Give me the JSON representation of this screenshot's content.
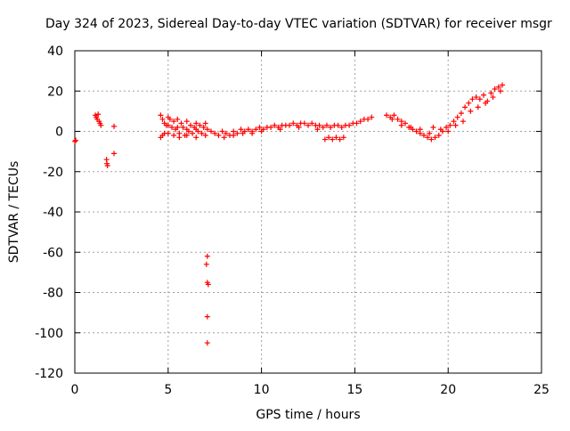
{
  "chart_data": {
    "type": "scatter",
    "title": "Day 324 of 2023, Sidereal Day-to-day VTEC variation (SDTVAR) for receiver msgr",
    "xlabel": "GPS time / hours",
    "ylabel": "SDTVAR / TECUs",
    "xlim": [
      0,
      25
    ],
    "ylim": [
      -120,
      40
    ],
    "xticks": [
      0,
      5,
      10,
      15,
      20,
      25
    ],
    "yticks": [
      -120,
      -100,
      -80,
      -60,
      -40,
      -20,
      0,
      20,
      40
    ],
    "xtick_labels": [
      "0",
      "5",
      "10",
      "15",
      "20",
      "25"
    ],
    "ytick_labels": [
      "-120",
      "-100",
      "-80",
      "-60",
      "-40",
      "-20",
      "0",
      "20",
      "40"
    ],
    "grid": true,
    "marker": "+",
    "series_color": "#ff0000",
    "series": [
      {
        "name": "msgr",
        "points": [
          [
            0.0,
            -5
          ],
          [
            0.05,
            -4.5
          ],
          [
            1.1,
            8
          ],
          [
            1.15,
            7
          ],
          [
            1.2,
            6
          ],
          [
            1.25,
            8.5
          ],
          [
            1.3,
            5
          ],
          [
            1.35,
            4
          ],
          [
            1.4,
            3
          ],
          [
            1.7,
            -14
          ],
          [
            1.72,
            -16
          ],
          [
            1.75,
            -17
          ],
          [
            2.1,
            2.5
          ],
          [
            2.1,
            -11
          ],
          [
            4.6,
            8
          ],
          [
            4.7,
            6
          ],
          [
            4.8,
            4
          ],
          [
            4.9,
            3
          ],
          [
            5.0,
            7
          ],
          [
            5.1,
            6
          ],
          [
            5.2,
            2
          ],
          [
            5.3,
            5
          ],
          [
            5.4,
            1
          ],
          [
            5.5,
            6
          ],
          [
            5.6,
            -1
          ],
          [
            5.7,
            4
          ],
          [
            5.8,
            2
          ],
          [
            5.9,
            -2
          ],
          [
            6.0,
            5
          ],
          [
            6.1,
            0
          ],
          [
            6.2,
            3
          ],
          [
            6.3,
            -1
          ],
          [
            6.4,
            2
          ],
          [
            6.5,
            4
          ],
          [
            6.6,
            0
          ],
          [
            6.7,
            3
          ],
          [
            6.8,
            -1
          ],
          [
            6.9,
            2
          ],
          [
            7.0,
            4
          ],
          [
            7.1,
            1
          ],
          [
            4.6,
            -3
          ],
          [
            4.7,
            -2
          ],
          [
            4.8,
            -1
          ],
          [
            5.0,
            -1
          ],
          [
            5.3,
            -2
          ],
          [
            5.6,
            -3
          ],
          [
            6.0,
            -2
          ],
          [
            6.5,
            -3
          ],
          [
            5.0,
            3
          ],
          [
            5.5,
            2
          ],
          [
            6.0,
            1
          ],
          [
            6.5,
            1
          ],
          [
            7.0,
            -2
          ],
          [
            7.1,
            -62
          ],
          [
            7.05,
            -66
          ],
          [
            7.1,
            -75
          ],
          [
            7.15,
            -76
          ],
          [
            7.1,
            -92
          ],
          [
            7.1,
            -105
          ],
          [
            7.3,
            0
          ],
          [
            7.5,
            -1
          ],
          [
            7.7,
            -2
          ],
          [
            7.9,
            0
          ],
          [
            8.1,
            -1
          ],
          [
            8.3,
            -2
          ],
          [
            8.5,
            0
          ],
          [
            8.7,
            -1
          ],
          [
            8.9,
            1
          ],
          [
            9.1,
            0
          ],
          [
            9.3,
            1
          ],
          [
            9.5,
            0
          ],
          [
            9.7,
            1
          ],
          [
            9.9,
            2
          ],
          [
            10.1,
            1
          ],
          [
            10.3,
            2
          ],
          [
            10.5,
            2
          ],
          [
            10.7,
            3
          ],
          [
            10.9,
            2
          ],
          [
            11.1,
            3
          ],
          [
            11.3,
            3
          ],
          [
            11.5,
            3
          ],
          [
            11.7,
            4
          ],
          [
            11.9,
            3
          ],
          [
            12.1,
            4
          ],
          [
            12.3,
            4
          ],
          [
            12.5,
            3
          ],
          [
            12.7,
            4
          ],
          [
            12.9,
            3
          ],
          [
            13.1,
            3
          ],
          [
            13.3,
            2
          ],
          [
            13.5,
            3
          ],
          [
            13.7,
            2
          ],
          [
            13.9,
            3
          ],
          [
            14.1,
            3
          ],
          [
            14.3,
            2
          ],
          [
            14.5,
            3
          ],
          [
            14.7,
            3
          ],
          [
            14.9,
            4
          ],
          [
            15.1,
            4
          ],
          [
            15.3,
            5
          ],
          [
            15.5,
            6
          ],
          [
            15.7,
            6
          ],
          [
            15.9,
            7
          ],
          [
            8.0,
            -3
          ],
          [
            8.5,
            -2
          ],
          [
            9.0,
            -1
          ],
          [
            9.5,
            -1
          ],
          [
            10.0,
            0
          ],
          [
            11.0,
            1
          ],
          [
            12.0,
            2
          ],
          [
            13.0,
            1
          ],
          [
            13.4,
            -4
          ],
          [
            13.6,
            -3
          ],
          [
            13.8,
            -4
          ],
          [
            14.0,
            -3
          ],
          [
            14.2,
            -4
          ],
          [
            14.4,
            -3
          ],
          [
            16.7,
            8
          ],
          [
            16.9,
            7
          ],
          [
            17.1,
            8
          ],
          [
            17.3,
            6
          ],
          [
            17.5,
            5
          ],
          [
            17.7,
            4
          ],
          [
            17.9,
            2
          ],
          [
            18.1,
            1
          ],
          [
            18.3,
            0
          ],
          [
            18.5,
            -1
          ],
          [
            18.7,
            -2
          ],
          [
            18.9,
            -3
          ],
          [
            19.1,
            -4
          ],
          [
            19.3,
            -3
          ],
          [
            19.5,
            -2
          ],
          [
            19.7,
            0
          ],
          [
            19.9,
            2
          ],
          [
            20.1,
            3
          ],
          [
            20.3,
            5
          ],
          [
            20.5,
            7
          ],
          [
            20.7,
            9
          ],
          [
            20.9,
            12
          ],
          [
            21.1,
            14
          ],
          [
            21.3,
            16
          ],
          [
            21.5,
            17
          ],
          [
            21.7,
            16
          ],
          [
            21.9,
            18
          ],
          [
            22.1,
            15
          ],
          [
            22.3,
            19
          ],
          [
            22.5,
            21
          ],
          [
            22.7,
            22
          ],
          [
            22.9,
            23
          ],
          [
            17.0,
            6
          ],
          [
            17.5,
            3
          ],
          [
            18.0,
            2
          ],
          [
            18.5,
            1
          ],
          [
            19.0,
            -1
          ],
          [
            19.2,
            2
          ],
          [
            19.6,
            1
          ],
          [
            20.0,
            0
          ],
          [
            20.4,
            3
          ],
          [
            20.8,
            5
          ],
          [
            21.2,
            10
          ],
          [
            21.6,
            12
          ],
          [
            22.0,
            14
          ],
          [
            22.4,
            17
          ],
          [
            22.8,
            20
          ]
        ]
      }
    ]
  }
}
